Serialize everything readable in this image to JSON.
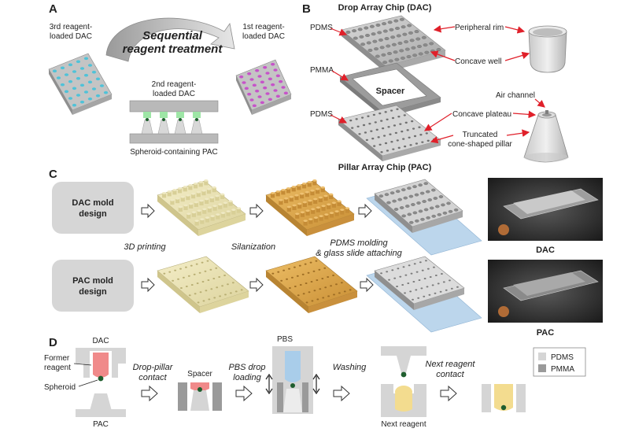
{
  "panel_a": {
    "letter": "A",
    "title_line1": "Sequential",
    "title_line2": "reagent treatment",
    "dac3_line1": "3rd reagent-",
    "dac3_line2": "loaded DAC",
    "dac1_line1": "1st reagent-",
    "dac1_line2": "loaded DAC",
    "dac2_line1": "2nd reagent-",
    "dac2_line2": "loaded DAC",
    "pac_caption": "Spheroid-containing PAC"
  },
  "panel_b": {
    "letter": "B",
    "top_title": "Drop Array Chip (DAC)",
    "bottom_title": "Pillar Array Chip (PAC)",
    "label_pdms_top": "PDMS",
    "label_pmma": "PMMA",
    "label_pdms_bottom": "PDMS",
    "spacer": "Spacer",
    "peripheral_rim": "Peripheral rim",
    "concave_well": "Concave well",
    "air_channel": "Air channel",
    "concave_plateau": "Concave plateau",
    "truncated_line1": "Truncated",
    "truncated_line2": "cone-shaped pillar"
  },
  "panel_c": {
    "letter": "C",
    "dac_mold_line1": "DAC mold",
    "dac_mold_line2": "design",
    "pac_mold_line1": "PAC mold",
    "pac_mold_line2": "design",
    "step_3d": "3D printing",
    "step_silan": "Silanization",
    "step_pdms_line1": "PDMS molding",
    "step_pdms_line2": "& glass slide attaching",
    "photo_dac": "DAC",
    "photo_pac": "PAC"
  },
  "panel_d": {
    "letter": "D",
    "dac": "DAC",
    "pac": "PAC",
    "former_line1": "Former",
    "former_line2": "reagent",
    "spheroid": "Spheroid",
    "drop_pillar_line1": "Drop-pillar",
    "drop_pillar_line2": "contact",
    "spacer": "Spacer",
    "pbs_drop_line1": "PBS drop",
    "pbs_drop_line2": "loading",
    "pbs": "PBS",
    "washing": "Washing",
    "next_reagent_contact_line1": "Next reagent",
    "next_reagent_contact_line2": "contact",
    "next_reagent": "Next reagent",
    "legend_pdms": "PDMS",
    "legend_pmma": "PMMA"
  },
  "colors": {
    "red_arrow": "#e0202a",
    "pink_reagent": "#f08a8a",
    "blue_pbs": "#a9cdea",
    "yellow_reagent": "#f3dc8f",
    "spheroid": "#1f5e2e",
    "pdms_light": "#d5d5d5",
    "pmma_dark": "#9a9a9a",
    "teal_drops": "#4fc2d8",
    "magenta_drops": "#c653c9",
    "mold_pale": "#eee7b8",
    "mold_orange": "#e0ab4f"
  }
}
